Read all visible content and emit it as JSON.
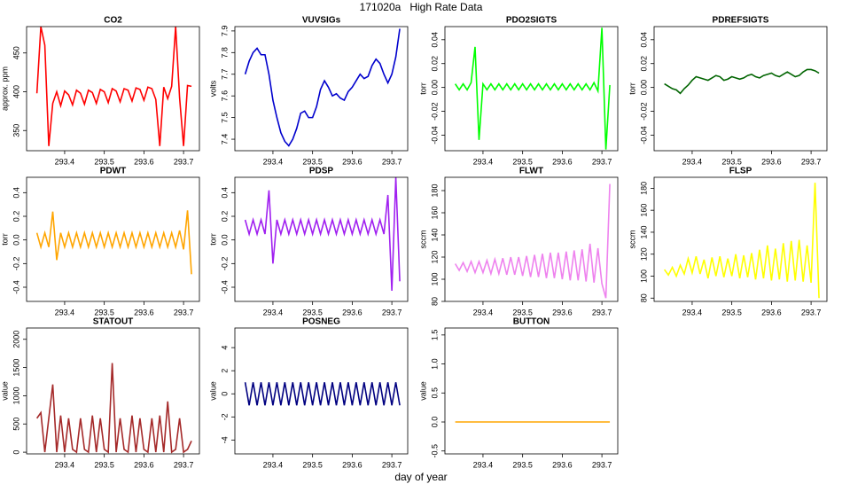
{
  "title": "171020a   High Rate Data",
  "xlabel": "day of year",
  "chart_data": [
    {
      "type": "line",
      "title": "CO2",
      "ylabel": "approx. ppm",
      "color": "#ff0000",
      "x": [
        293.33,
        293.34,
        293.35,
        293.36,
        293.37,
        293.38,
        293.39,
        293.4,
        293.41,
        293.42,
        293.43,
        293.44,
        293.45,
        293.46,
        293.47,
        293.48,
        293.49,
        293.5,
        293.51,
        293.52,
        293.53,
        293.54,
        293.55,
        293.56,
        293.57,
        293.58,
        293.59,
        293.6,
        293.61,
        293.62,
        293.63,
        293.64,
        293.65,
        293.66,
        293.67,
        293.68,
        293.69,
        293.7,
        293.71,
        293.72
      ],
      "values": [
        398,
        484,
        460,
        330,
        385,
        400,
        382,
        401,
        396,
        383,
        402,
        398,
        384,
        402,
        399,
        385,
        403,
        400,
        386,
        404,
        401,
        387,
        404,
        402,
        388,
        405,
        403,
        389,
        406,
        404,
        390,
        330,
        406,
        391,
        407,
        484,
        392,
        330,
        408,
        407
      ],
      "xlim": [
        293.304,
        293.74
      ],
      "xticks": [
        293.4,
        293.5,
        293.6,
        293.7
      ],
      "ylim": [
        324,
        484
      ],
      "yticks": [
        350,
        400,
        450
      ]
    },
    {
      "type": "line",
      "title": "VUVSIGs",
      "ylabel": "volts",
      "color": "#0000cd",
      "x": [
        293.33,
        293.34,
        293.35,
        293.36,
        293.37,
        293.38,
        293.39,
        293.4,
        293.41,
        293.42,
        293.43,
        293.44,
        293.45,
        293.46,
        293.47,
        293.48,
        293.49,
        293.5,
        293.51,
        293.52,
        293.53,
        293.54,
        293.55,
        293.56,
        293.57,
        293.58,
        293.59,
        293.6,
        293.61,
        293.62,
        293.63,
        293.64,
        293.65,
        293.66,
        293.67,
        293.68,
        293.69,
        293.7,
        293.71,
        293.72
      ],
      "values": [
        7.7,
        7.76,
        7.8,
        7.82,
        7.79,
        7.79,
        7.7,
        7.58,
        7.5,
        7.43,
        7.39,
        7.37,
        7.4,
        7.45,
        7.52,
        7.53,
        7.5,
        7.5,
        7.55,
        7.63,
        7.67,
        7.64,
        7.6,
        7.61,
        7.59,
        7.58,
        7.62,
        7.64,
        7.67,
        7.7,
        7.68,
        7.69,
        7.74,
        7.77,
        7.75,
        7.7,
        7.66,
        7.7,
        7.78,
        7.91
      ],
      "xlim": [
        293.304,
        293.74
      ],
      "xticks": [
        293.4,
        293.5,
        293.6,
        293.7
      ],
      "ylim": [
        7.347,
        7.92
      ],
      "yticks": [
        7.4,
        7.5,
        7.6,
        7.7,
        7.8,
        7.9
      ]
    },
    {
      "type": "line",
      "title": "PDO2SIGTS",
      "ylabel": "torr",
      "color": "#00ff00",
      "x": [
        293.33,
        293.34,
        293.35,
        293.36,
        293.37,
        293.38,
        293.39,
        293.4,
        293.41,
        293.42,
        293.43,
        293.44,
        293.45,
        293.46,
        293.47,
        293.48,
        293.49,
        293.5,
        293.51,
        293.52,
        293.53,
        293.54,
        293.55,
        293.56,
        293.57,
        293.58,
        293.59,
        293.6,
        293.61,
        293.62,
        293.63,
        293.64,
        293.65,
        293.66,
        293.67,
        293.68,
        293.69,
        293.7,
        293.71,
        293.72
      ],
      "values": [
        0.003,
        -0.002,
        0.003,
        -0.002,
        0.004,
        0.034,
        -0.044,
        0.003,
        -0.002,
        0.003,
        -0.002,
        0.003,
        -0.002,
        0.003,
        -0.002,
        0.003,
        -0.002,
        0.003,
        -0.002,
        0.003,
        -0.002,
        0.003,
        -0.002,
        0.003,
        -0.002,
        0.003,
        -0.002,
        0.003,
        -0.002,
        0.003,
        -0.002,
        0.003,
        -0.002,
        0.003,
        -0.002,
        0.004,
        -0.003,
        0.05,
        -0.052,
        0.002
      ],
      "xlim": [
        293.304,
        293.74
      ],
      "xticks": [
        293.4,
        293.5,
        293.6,
        293.7
      ],
      "ylim": [
        -0.053,
        0.051
      ],
      "yticks": [
        -0.04,
        -0.02,
        {
          "value": 0,
          "label": "0.00"
        },
        0.02,
        0.04
      ]
    },
    {
      "type": "line",
      "title": "PDREFSIGTS",
      "ylabel": "torr",
      "color": "#006400",
      "x": [
        293.33,
        293.34,
        293.35,
        293.36,
        293.37,
        293.38,
        293.39,
        293.4,
        293.41,
        293.42,
        293.43,
        293.44,
        293.45,
        293.46,
        293.47,
        293.48,
        293.49,
        293.5,
        293.51,
        293.52,
        293.53,
        293.54,
        293.55,
        293.56,
        293.57,
        293.58,
        293.59,
        293.6,
        293.61,
        293.62,
        293.63,
        293.64,
        293.65,
        293.66,
        293.67,
        293.68,
        293.69,
        293.7,
        293.71,
        293.72
      ],
      "values": [
        0.003,
        0.001,
        -0.001,
        -0.002,
        -0.005,
        -0.001,
        0.002,
        0.006,
        0.009,
        0.008,
        0.007,
        0.006,
        0.008,
        0.01,
        0.009,
        0.006,
        0.007,
        0.009,
        0.008,
        0.007,
        0.008,
        0.01,
        0.011,
        0.009,
        0.008,
        0.01,
        0.011,
        0.012,
        0.01,
        0.009,
        0.011,
        0.013,
        0.011,
        0.009,
        0.01,
        0.013,
        0.015,
        0.015,
        0.014,
        0.012
      ],
      "xlim": [
        293.304,
        293.74
      ],
      "xticks": [
        293.4,
        293.5,
        293.6,
        293.7
      ],
      "ylim": [
        -0.053,
        0.051
      ],
      "yticks": [
        -0.04,
        -0.02,
        {
          "value": 0,
          "label": "0.00"
        },
        0.02,
        0.04
      ]
    },
    {
      "type": "line",
      "title": "PDWT",
      "ylabel": "torr",
      "color": "#ffa500",
      "x": [
        293.33,
        293.34,
        293.35,
        293.36,
        293.37,
        293.38,
        293.39,
        293.4,
        293.41,
        293.42,
        293.43,
        293.44,
        293.45,
        293.46,
        293.47,
        293.48,
        293.49,
        293.5,
        293.51,
        293.52,
        293.53,
        293.54,
        293.55,
        293.56,
        293.57,
        293.58,
        293.59,
        293.6,
        293.61,
        293.62,
        293.63,
        293.64,
        293.65,
        293.66,
        293.67,
        293.68,
        293.69,
        293.7,
        293.71,
        293.72
      ],
      "values": [
        0.06,
        -0.06,
        0.06,
        -0.06,
        0.24,
        -0.17,
        0.06,
        -0.06,
        0.06,
        -0.06,
        0.06,
        -0.06,
        0.06,
        -0.06,
        0.06,
        -0.06,
        0.06,
        -0.06,
        0.06,
        -0.06,
        0.06,
        -0.06,
        0.06,
        -0.06,
        0.06,
        -0.06,
        0.06,
        -0.06,
        0.06,
        -0.06,
        0.06,
        -0.06,
        0.06,
        -0.06,
        0.06,
        -0.06,
        0.08,
        -0.08,
        0.25,
        -0.29
      ],
      "xlim": [
        293.304,
        293.74
      ],
      "xticks": [
        293.4,
        293.5,
        293.6,
        293.7
      ],
      "ylim": [
        -0.52,
        0.53
      ],
      "yticks": [
        -0.4,
        -0.2,
        {
          "value": 0,
          "label": "0.0"
        },
        0.2,
        0.4
      ]
    },
    {
      "type": "line",
      "title": "PDSP",
      "ylabel": "torr",
      "color": "#a020f0",
      "x": [
        293.33,
        293.34,
        293.35,
        293.36,
        293.37,
        293.38,
        293.39,
        293.4,
        293.41,
        293.42,
        293.43,
        293.44,
        293.45,
        293.46,
        293.47,
        293.48,
        293.49,
        293.5,
        293.51,
        293.52,
        293.53,
        293.54,
        293.55,
        293.56,
        293.57,
        293.58,
        293.59,
        293.6,
        293.61,
        293.62,
        293.63,
        293.64,
        293.65,
        293.66,
        293.67,
        293.68,
        293.69,
        293.7,
        293.71,
        293.72
      ],
      "values": [
        0.17,
        0.05,
        0.17,
        0.05,
        0.17,
        0.05,
        0.42,
        -0.2,
        0.17,
        0.05,
        0.17,
        0.05,
        0.17,
        0.05,
        0.17,
        0.05,
        0.17,
        0.05,
        0.17,
        0.05,
        0.17,
        0.05,
        0.17,
        0.05,
        0.17,
        0.05,
        0.17,
        0.05,
        0.17,
        0.05,
        0.17,
        0.05,
        0.17,
        0.05,
        0.17,
        0.05,
        0.38,
        -0.43,
        0.53,
        -0.35
      ],
      "xlim": [
        293.304,
        293.74
      ],
      "xticks": [
        293.4,
        293.5,
        293.6,
        293.7
      ],
      "ylim": [
        -0.52,
        0.53
      ],
      "yticks": [
        -0.4,
        -0.2,
        {
          "value": 0,
          "label": "0.0"
        },
        0.2,
        0.4
      ]
    },
    {
      "type": "line",
      "title": "FLWT",
      "ylabel": "sccm",
      "color": "#ee82ee",
      "x": [
        293.33,
        293.34,
        293.35,
        293.36,
        293.37,
        293.38,
        293.39,
        293.4,
        293.41,
        293.42,
        293.43,
        293.44,
        293.45,
        293.46,
        293.47,
        293.48,
        293.49,
        293.5,
        293.51,
        293.52,
        293.53,
        293.54,
        293.55,
        293.56,
        293.57,
        293.58,
        293.59,
        293.6,
        293.61,
        293.62,
        293.63,
        293.64,
        293.65,
        293.66,
        293.67,
        293.68,
        293.69,
        293.7,
        293.71,
        293.72
      ],
      "values": [
        114,
        108,
        115,
        107,
        116,
        106,
        116,
        106,
        117,
        105,
        118,
        105,
        119,
        104,
        120,
        104,
        120,
        103,
        121,
        102,
        122,
        102,
        123,
        101,
        124,
        101,
        124,
        100,
        125,
        99,
        126,
        99,
        127,
        98,
        132,
        97,
        128,
        96,
        83,
        186
      ],
      "xlim": [
        293.304,
        293.74
      ],
      "xticks": [
        293.4,
        293.5,
        293.6,
        293.7
      ],
      "ylim": [
        80,
        192
      ],
      "yticks": [
        80,
        100,
        120,
        140,
        160,
        180
      ]
    },
    {
      "type": "line",
      "title": "FLSP",
      "ylabel": "sccm",
      "color": "#ffff00",
      "x": [
        293.33,
        293.34,
        293.35,
        293.36,
        293.37,
        293.38,
        293.39,
        293.4,
        293.41,
        293.42,
        293.43,
        293.44,
        293.45,
        293.46,
        293.47,
        293.48,
        293.49,
        293.5,
        293.51,
        293.52,
        293.53,
        293.54,
        293.55,
        293.56,
        293.57,
        293.58,
        293.59,
        293.6,
        293.61,
        293.62,
        293.63,
        293.64,
        293.65,
        293.66,
        293.67,
        293.68,
        293.69,
        293.7,
        293.71,
        293.72
      ],
      "values": [
        106,
        101,
        108,
        100,
        110,
        102,
        116,
        103,
        118,
        102,
        115,
        98,
        117,
        100,
        118,
        99,
        116,
        100,
        120,
        98,
        119,
        99,
        121,
        97,
        124,
        98,
        128,
        96,
        125,
        97,
        130,
        95,
        132,
        96,
        133,
        95,
        128,
        94,
        185,
        80
      ],
      "xlim": [
        293.304,
        293.74
      ],
      "xticks": [
        293.4,
        293.5,
        293.6,
        293.7
      ],
      "ylim": [
        77,
        190
      ],
      "yticks": [
        80,
        100,
        120,
        140,
        160,
        180
      ]
    },
    {
      "type": "line",
      "title": "STATOUT",
      "ylabel": "value",
      "color": "#a52a2a",
      "x": [
        293.33,
        293.34,
        293.35,
        293.36,
        293.37,
        293.38,
        293.39,
        293.4,
        293.41,
        293.42,
        293.43,
        293.44,
        293.45,
        293.46,
        293.47,
        293.48,
        293.49,
        293.5,
        293.51,
        293.52,
        293.53,
        293.54,
        293.55,
        293.56,
        293.57,
        293.58,
        293.59,
        293.6,
        293.61,
        293.62,
        293.63,
        293.64,
        293.65,
        293.66,
        293.67,
        293.68,
        293.69,
        293.7,
        293.71,
        293.72
      ],
      "values": [
        600,
        700,
        0,
        600,
        1200,
        0,
        650,
        0,
        600,
        50,
        0,
        600,
        50,
        0,
        650,
        0,
        600,
        50,
        0,
        1580,
        0,
        600,
        50,
        0,
        650,
        0,
        600,
        50,
        0,
        600,
        0,
        650,
        0,
        900,
        0,
        50,
        600,
        0,
        50,
        200
      ],
      "xlim": [
        293.304,
        293.74
      ],
      "xticks": [
        293.4,
        293.5,
        293.6,
        293.7
      ],
      "ylim": [
        -30,
        2200
      ],
      "yticks": [
        0,
        500,
        1000,
        1500,
        2000
      ]
    },
    {
      "type": "line",
      "title": "POSNEG",
      "ylabel": "value",
      "color": "#000080",
      "x": [
        293.33,
        293.34,
        293.35,
        293.36,
        293.37,
        293.38,
        293.39,
        293.4,
        293.41,
        293.42,
        293.43,
        293.44,
        293.45,
        293.46,
        293.47,
        293.48,
        293.49,
        293.5,
        293.51,
        293.52,
        293.53,
        293.54,
        293.55,
        293.56,
        293.57,
        293.58,
        293.59,
        293.6,
        293.61,
        293.62,
        293.63,
        293.64,
        293.65,
        293.66,
        293.67,
        293.68,
        293.69,
        293.7,
        293.71,
        293.72
      ],
      "values": [
        1,
        -1,
        1,
        -1,
        1,
        -1,
        1,
        -1,
        1,
        -1,
        1,
        -1,
        1,
        -1,
        1,
        -1,
        1,
        -1,
        1,
        -1,
        1,
        -1,
        1,
        -1,
        1,
        -1,
        1,
        -1,
        1,
        -1,
        1,
        -1,
        1,
        -1,
        1,
        -1,
        1,
        -1,
        1,
        -1
      ],
      "xlim": [
        293.304,
        293.74
      ],
      "xticks": [
        293.4,
        293.5,
        293.6,
        293.7
      ],
      "ylim": [
        -5.2,
        5.7
      ],
      "yticks": [
        -4,
        -2,
        0,
        2,
        4
      ]
    },
    {
      "type": "line",
      "title": "BUTTON",
      "ylabel": "value",
      "color": "#ffa500",
      "x": [
        293.33,
        293.34,
        293.35,
        293.36,
        293.37,
        293.38,
        293.39,
        293.4,
        293.41,
        293.42,
        293.43,
        293.44,
        293.45,
        293.46,
        293.47,
        293.48,
        293.49,
        293.5,
        293.51,
        293.52,
        293.53,
        293.54,
        293.55,
        293.56,
        293.57,
        293.58,
        293.59,
        293.6,
        293.61,
        293.62,
        293.63,
        293.64,
        293.65,
        293.66,
        293.67,
        293.68,
        293.69,
        293.7,
        293.71,
        293.72
      ],
      "values": [
        0,
        0,
        0,
        0,
        0,
        0,
        0,
        0,
        0,
        0,
        0,
        0,
        0,
        0,
        0,
        0,
        0,
        0,
        0,
        0,
        0,
        0,
        0,
        0,
        0,
        0,
        0,
        0,
        0,
        0,
        0,
        0,
        0,
        0,
        0,
        0,
        0,
        0,
        0,
        0
      ],
      "xlim": [
        293.304,
        293.74
      ],
      "xticks": [
        293.4,
        293.5,
        293.6,
        293.7
      ],
      "ylim": [
        -0.55,
        1.62
      ],
      "yticks": [
        -0.5,
        {
          "value": 0,
          "label": "0.0"
        },
        0.5,
        {
          "value": 1,
          "label": "1.0"
        },
        1.5
      ]
    }
  ]
}
